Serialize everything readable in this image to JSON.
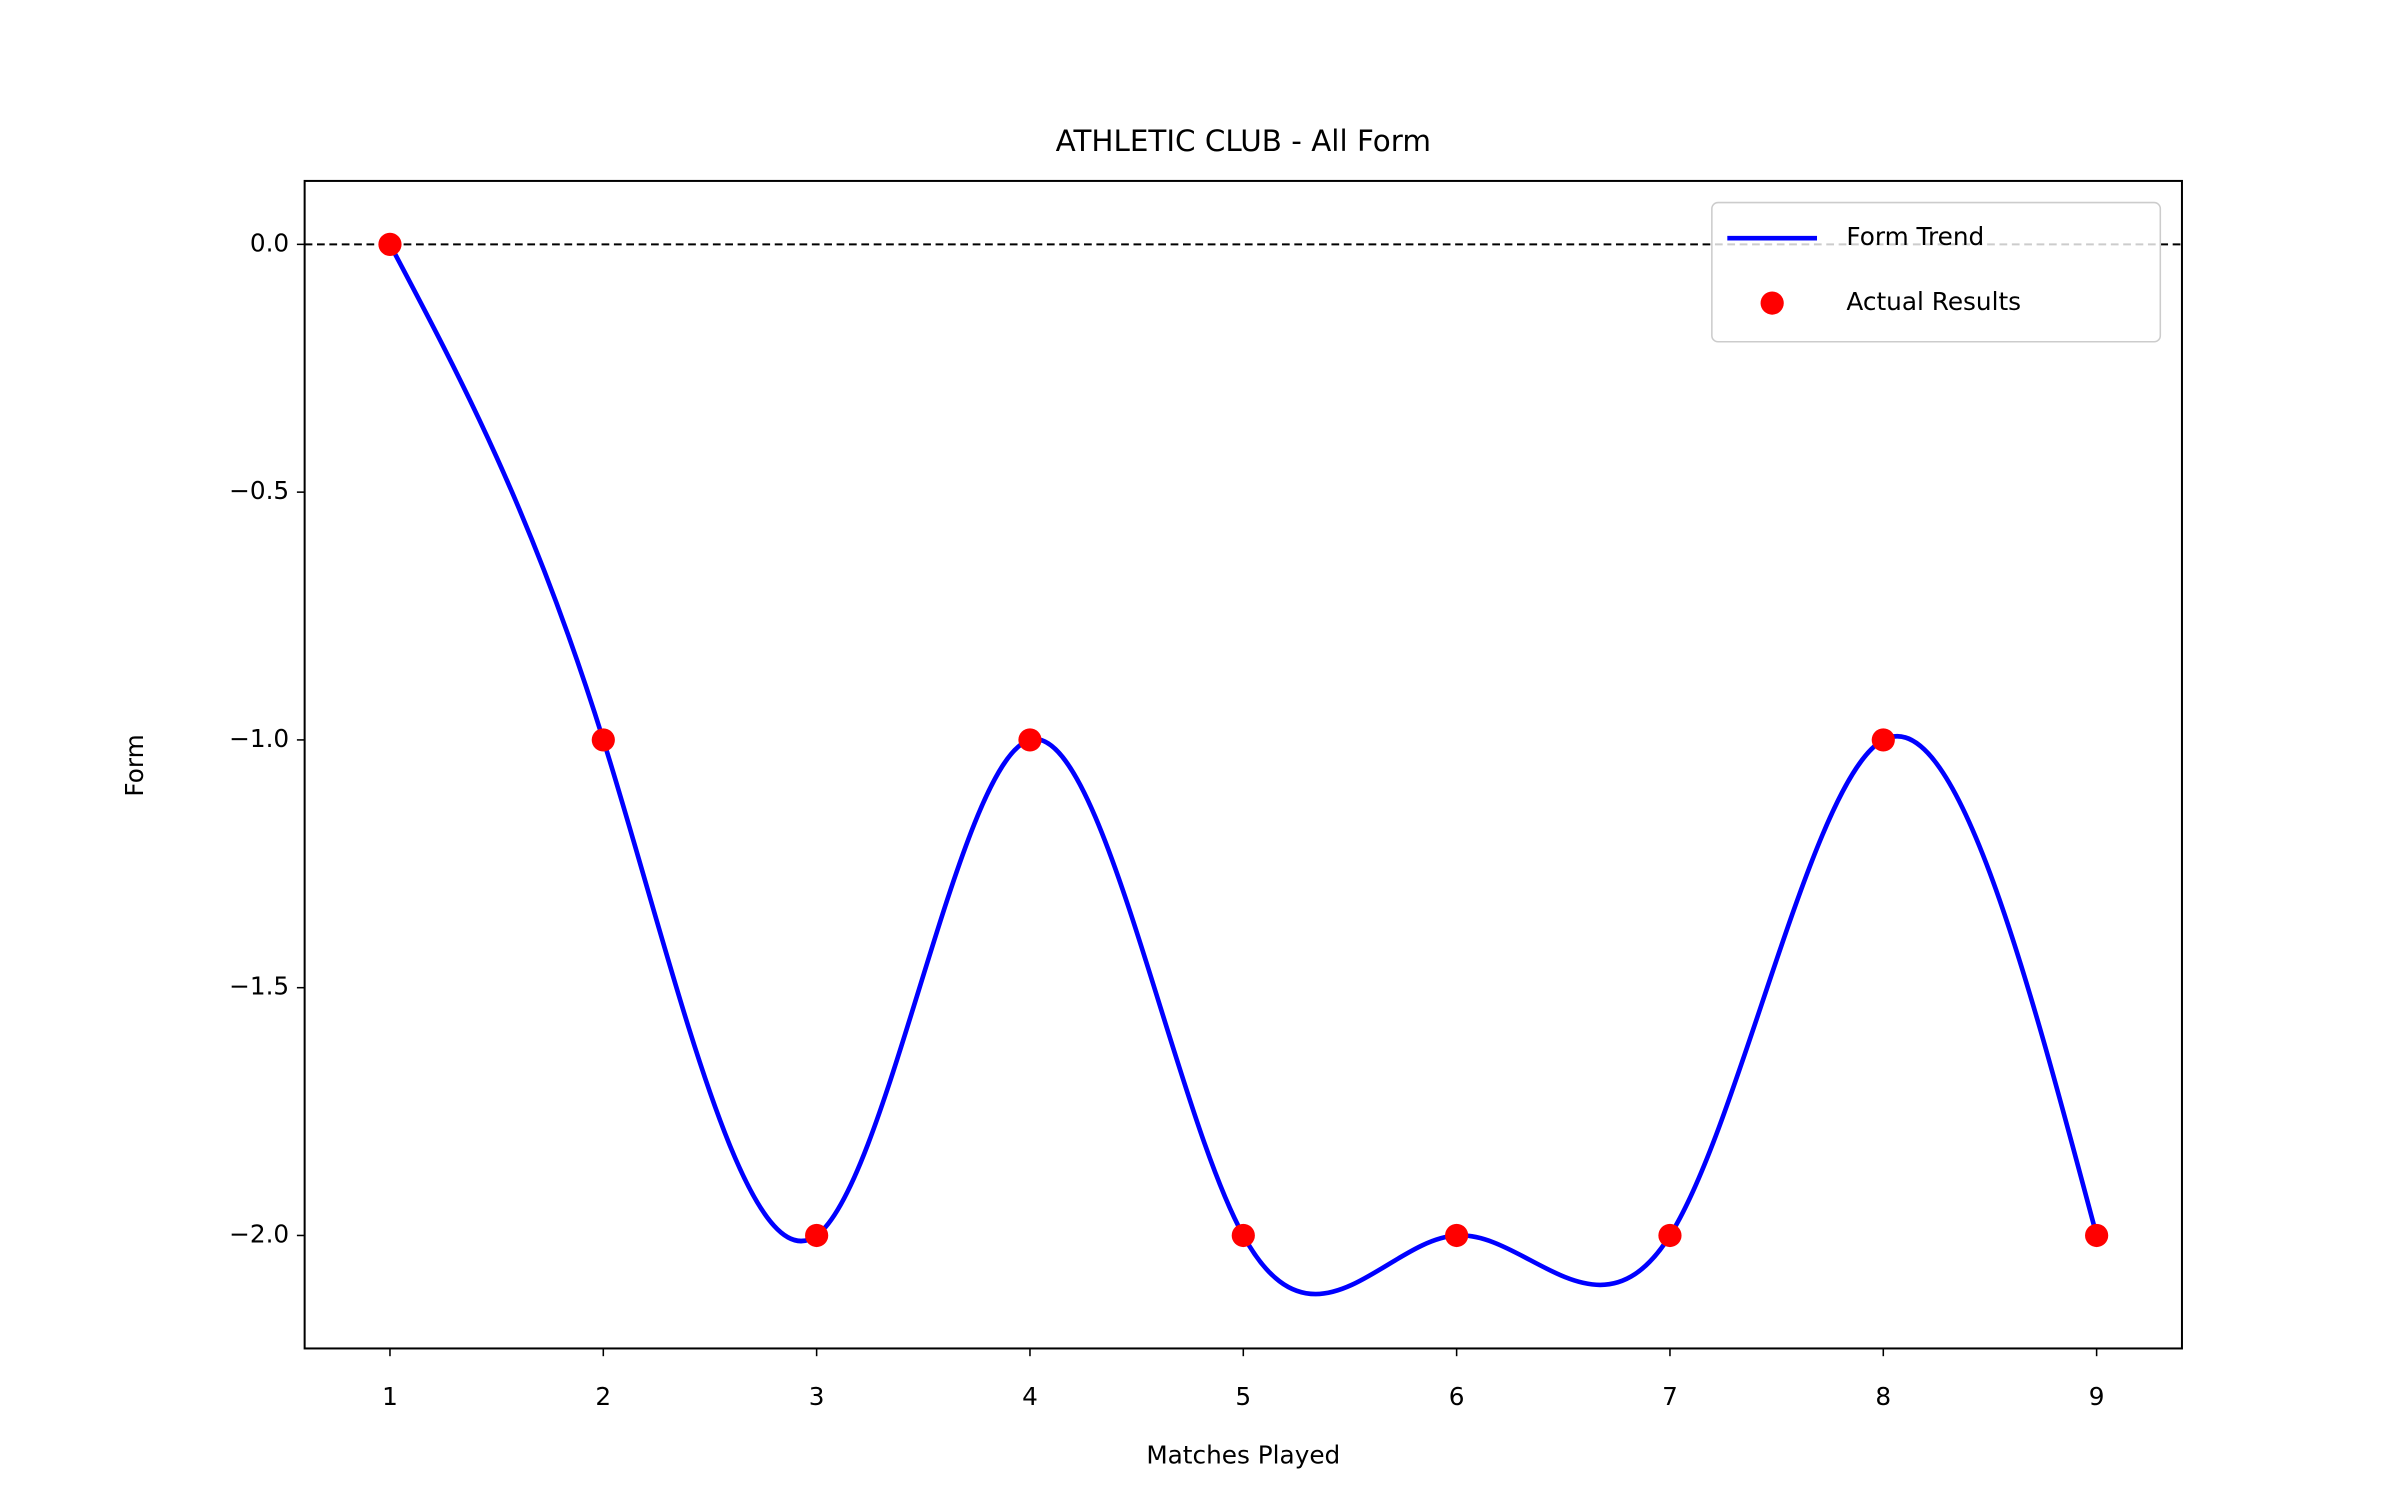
{
  "chart_data": {
    "type": "line",
    "title": "ATHLETIC CLUB - All Form",
    "x_label": "Matches Played",
    "y_label": "Form",
    "x": [
      1,
      2,
      3,
      4,
      5,
      6,
      7,
      8,
      9
    ],
    "series": [
      {
        "name": "Form Trend",
        "style": "smooth-line",
        "color": "#0000ff",
        "values": [
          0,
          -1,
          -2,
          -1,
          -2,
          -2,
          -2,
          -1,
          -2
        ]
      },
      {
        "name": "Actual Results",
        "style": "scatter",
        "color": "#ff0000",
        "values": [
          0,
          -1,
          -2,
          -1,
          -2,
          -2,
          -2,
          -1,
          -2
        ]
      }
    ],
    "xlim": [
      0.6,
      9.4
    ],
    "xticks": [
      1,
      2,
      3,
      4,
      5,
      6,
      7,
      8,
      9
    ],
    "ylim": [
      -2.228,
      0.128
    ],
    "yticks": [
      {
        "value": -2,
        "label": "−2.0"
      },
      {
        "value": -1.5,
        "label": "−1.5"
      },
      {
        "value": -1,
        "label": "−1.0"
      },
      {
        "value": -0.5,
        "label": "−0.5"
      },
      {
        "value": 0,
        "label": "0.0"
      }
    ],
    "reference_line": 0,
    "legend": "upper right",
    "grid": false
  }
}
